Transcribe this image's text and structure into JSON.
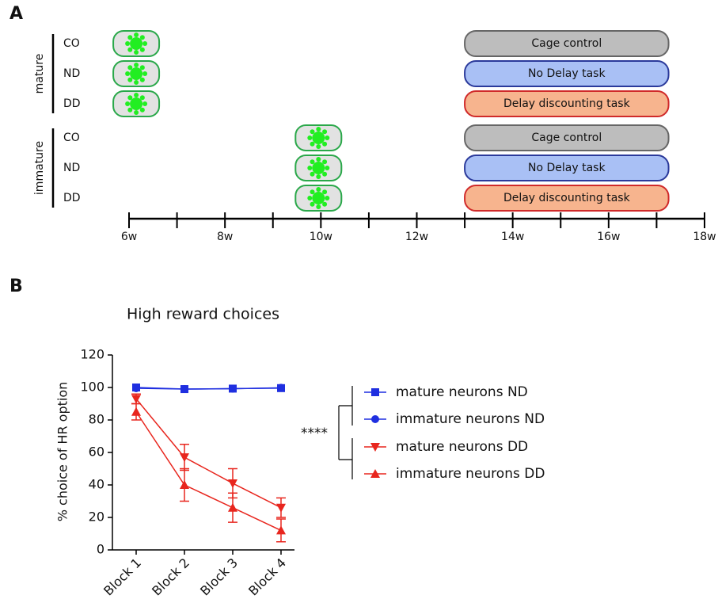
{
  "panel_a": {
    "label": "A",
    "timeline": {
      "xlim": [
        6,
        18
      ],
      "ticks": [
        {
          "value": 6,
          "label": "6w"
        },
        {
          "value": 8,
          "label": "8w"
        },
        {
          "value": 10,
          "label": "10w"
        },
        {
          "value": 12,
          "label": "12w"
        },
        {
          "value": 14,
          "label": "14w"
        },
        {
          "value": 16,
          "label": "16w"
        },
        {
          "value": 18,
          "label": "18w"
        }
      ],
      "minor_ticks": [
        7,
        9,
        11,
        13,
        15,
        17
      ]
    },
    "task_start": 13,
    "task_end": 17.25,
    "groups": [
      {
        "label": "mature",
        "injection": 6.15,
        "rows": [
          {
            "label": "CO",
            "task": "Cage control",
            "color": "#bdbdbd",
            "stroke": "#666666"
          },
          {
            "label": "ND",
            "task": "No Delay task",
            "color": "#a9c0f5",
            "stroke": "#2b3a9b"
          },
          {
            "label": "DD",
            "task": "Delay discounting task",
            "color": "#f7b48e",
            "stroke": "#d02a2a"
          }
        ]
      },
      {
        "label": "immature",
        "injection": 9.95,
        "rows": [
          {
            "label": "CO",
            "task": "Cage control",
            "color": "#bdbdbd",
            "stroke": "#666666"
          },
          {
            "label": "ND",
            "task": "No Delay task",
            "color": "#a9c0f5",
            "stroke": "#2b3a9b"
          },
          {
            "label": "DD",
            "task": "Delay discounting task",
            "color": "#f7b48e",
            "stroke": "#d02a2a"
          }
        ]
      }
    ]
  },
  "chart_data": {
    "type": "line",
    "panel_label": "B",
    "title": "High reward choices",
    "y_label": "% choice of HR option",
    "annotation": "****",
    "categories": [
      "Block 1",
      "Block 2",
      "Block 3",
      "Block 4"
    ],
    "ylim": [
      0,
      120
    ],
    "yticks": [
      0,
      20,
      40,
      60,
      80,
      100,
      120
    ],
    "series": [
      {
        "name": "mature neurons ND",
        "color": "#1f2fe0",
        "marker": "square",
        "values": [
          100,
          99,
          99.3,
          99.6
        ]
      },
      {
        "name": "immature neurons ND",
        "color": "#1f2fe0",
        "marker": "circle",
        "values": [
          99.5,
          99,
          99.2,
          99.8
        ]
      },
      {
        "name": "mature neurons DD",
        "color": "#e8261e",
        "marker": "triangle-down",
        "values": [
          93,
          57,
          41,
          26
        ],
        "errors": [
          3,
          8,
          9,
          6
        ]
      },
      {
        "name": "immature neurons DD",
        "color": "#e8261e",
        "marker": "triangle-up",
        "values": [
          85,
          40,
          26,
          12
        ],
        "errors": [
          5,
          10,
          9,
          7
        ]
      }
    ]
  }
}
